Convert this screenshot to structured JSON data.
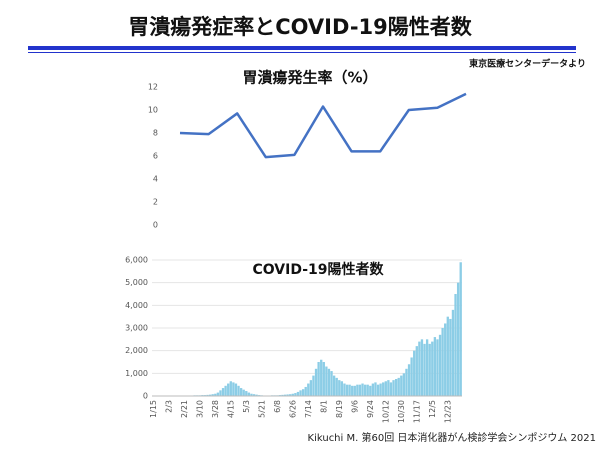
{
  "slide": {
    "title": "胃潰瘍発症率とCOVID-19陽性者数",
    "source": "東京医療センターデータより",
    "footer": "Kikuchi M. 第60回 日本消化器がん検診学会シンポジウム 2021"
  },
  "chart_data": [
    {
      "type": "line",
      "title": "胃潰瘍発生率（%）",
      "categories": [
        null,
        null,
        null,
        null,
        null,
        null,
        null,
        null,
        null,
        null,
        null
      ],
      "values": [
        8,
        7.9,
        9.7,
        5.9,
        6.1,
        10.3,
        6.4,
        6.4,
        10,
        10.2,
        11.4
      ],
      "color": "#4472c4",
      "ylim": [
        0,
        12
      ],
      "yticks": [
        0,
        2,
        4,
        6,
        8,
        10,
        12
      ],
      "grid": false
    },
    {
      "type": "bar",
      "title": "COVID-19陽性者数",
      "categories": [
        "1/15",
        null,
        null,
        null,
        null,
        null,
        "2/3",
        null,
        null,
        null,
        null,
        null,
        "2/21",
        null,
        null,
        null,
        null,
        null,
        "3/10",
        null,
        null,
        null,
        null,
        null,
        "3/28",
        null,
        null,
        null,
        null,
        null,
        "4/15",
        null,
        null,
        null,
        null,
        null,
        "5/3",
        null,
        null,
        null,
        null,
        null,
        "5/21",
        null,
        null,
        null,
        null,
        null,
        "6/8",
        null,
        null,
        null,
        null,
        null,
        "6/26",
        null,
        null,
        null,
        null,
        null,
        "7/14",
        null,
        null,
        null,
        null,
        null,
        "8/1",
        null,
        null,
        null,
        null,
        null,
        "8/19",
        null,
        null,
        null,
        null,
        null,
        "9/6",
        null,
        null,
        null,
        null,
        null,
        "9/24",
        null,
        null,
        null,
        null,
        null,
        "10/12",
        null,
        null,
        null,
        null,
        null,
        "10/30",
        null,
        null,
        null,
        null,
        null,
        "11/17",
        null,
        null,
        null,
        null,
        null,
        "12/5",
        null,
        null,
        null,
        null,
        null,
        "12/23",
        null,
        null,
        null,
        null,
        null
      ],
      "values": [
        0,
        0,
        0,
        0,
        0,
        0,
        0,
        0,
        0,
        0,
        0,
        0,
        10,
        10,
        20,
        20,
        30,
        30,
        30,
        40,
        40,
        50,
        60,
        80,
        100,
        150,
        250,
        350,
        450,
        550,
        650,
        600,
        550,
        450,
        350,
        280,
        220,
        150,
        100,
        80,
        60,
        40,
        30,
        20,
        20,
        20,
        30,
        30,
        30,
        40,
        50,
        60,
        70,
        80,
        100,
        130,
        180,
        250,
        300,
        400,
        550,
        700,
        900,
        1200,
        1500,
        1600,
        1500,
        1300,
        1200,
        1100,
        900,
        800,
        700,
        650,
        550,
        500,
        500,
        450,
        450,
        500,
        500,
        550,
        500,
        500,
        450,
        550,
        600,
        500,
        550,
        600,
        650,
        700,
        600,
        700,
        750,
        800,
        900,
        1000,
        1200,
        1400,
        1700,
        2000,
        2200,
        2400,
        2500,
        2300,
        2500,
        2300,
        2400,
        2600,
        2500,
        2700,
        3000,
        3200,
        3500,
        3400,
        3800,
        4500,
        5000,
        5900
      ],
      "color": "#8ccde6",
      "ylim": [
        0,
        6000
      ],
      "yticks": [
        0,
        {
          "value": 1000,
          "label": "1,000"
        },
        {
          "value": 2000,
          "label": "2,000"
        },
        {
          "value": 3000,
          "label": "3,000"
        },
        {
          "value": 4000,
          "label": "4,000"
        },
        {
          "value": 5000,
          "label": "5,000"
        },
        {
          "value": 6000,
          "label": "6,000"
        }
      ],
      "grid": true
    }
  ]
}
